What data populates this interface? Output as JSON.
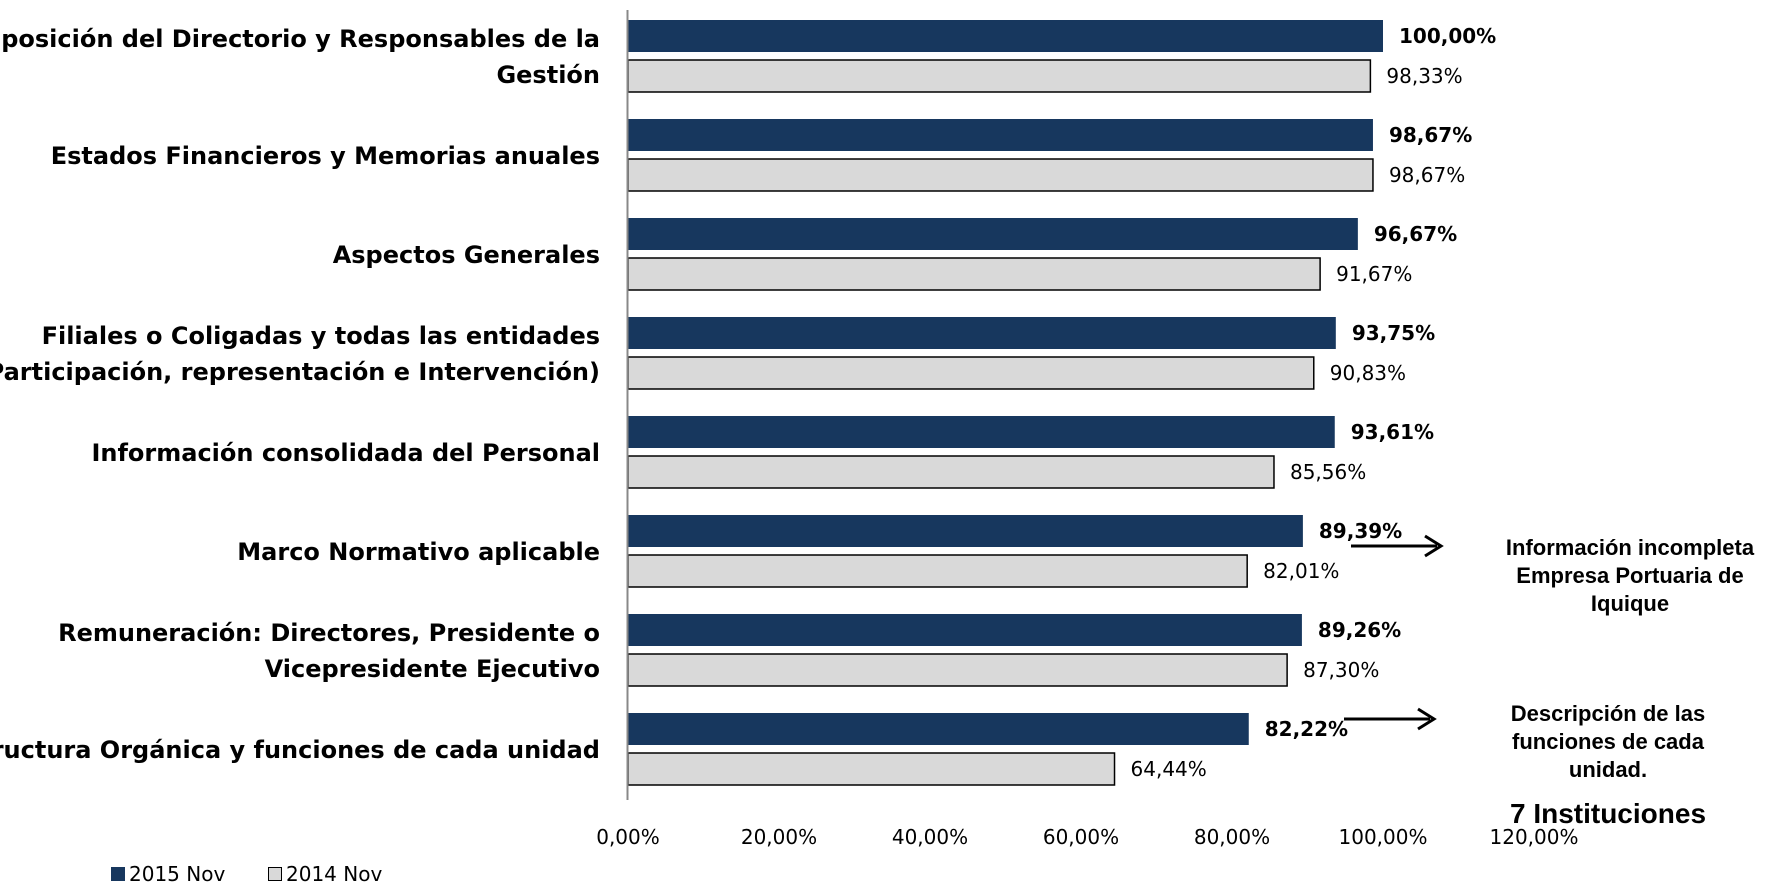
{
  "chart_data": {
    "type": "bar",
    "orientation": "horizontal",
    "categories": [
      [
        "Composición del Directorio y Responsables de la",
        "Gestión"
      ],
      [
        "Estados Financieros y Memorias anuales"
      ],
      [
        "Aspectos Generales"
      ],
      [
        "Filiales o Coligadas y todas las entidades",
        "(Participación, representación e Intervención)"
      ],
      [
        "Información consolidada del Personal"
      ],
      [
        "Marco Normativo aplicable"
      ],
      [
        "Remuneración: Directores, Presidente o",
        "Vicepresidente Ejecutivo"
      ],
      [
        "Estructura Orgánica y funciones de cada unidad"
      ]
    ],
    "series": [
      {
        "name": "2015  Nov",
        "color": "#17375e",
        "values": [
          100.0,
          98.67,
          96.67,
          93.75,
          93.61,
          89.39,
          89.26,
          82.22
        ],
        "labels": [
          "100,00%",
          "98,67%",
          "96,67%",
          "93,75%",
          "93,61%",
          "89,39%",
          "89,26%",
          "82,22%"
        ]
      },
      {
        "name": "2014  Nov",
        "color": "#d9d9d9",
        "values": [
          98.33,
          98.67,
          91.67,
          90.83,
          85.56,
          82.01,
          87.3,
          64.44
        ],
        "labels": [
          "98,33%",
          "98,67%",
          "91,67%",
          "90,83%",
          "85,56%",
          "82,01%",
          "87,30%",
          "64,44%"
        ]
      }
    ],
    "xlim": [
      0,
      120
    ],
    "xticks": [
      "0,00%",
      "20,00%",
      "40,00%",
      "60,00%",
      "80,00%",
      "100,00%",
      "120,00%"
    ],
    "grid": false,
    "legend_position": "bottom-left"
  },
  "annotations": {
    "note1": [
      "Información incompleta",
      "Empresa Portuaria de",
      "Iquique"
    ],
    "note2": [
      "Descripción de las",
      "funciones de cada",
      "unidad."
    ],
    "note3": "7 Instituciones"
  },
  "legend": {
    "item_2015": "2015  Nov",
    "item_2014": "2014  Nov"
  }
}
